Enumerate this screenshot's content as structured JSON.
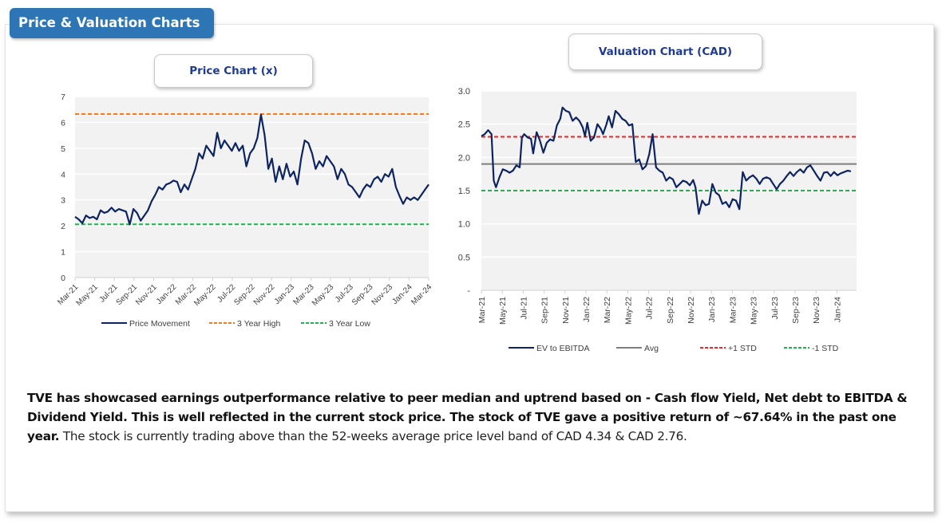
{
  "header": {
    "title": "Price & Valuation Charts"
  },
  "chart_data": [
    {
      "id": "price",
      "type": "line",
      "title": "Price Chart (x)",
      "xlabel": "",
      "ylabel": "",
      "ylim": [
        0,
        7
      ],
      "yticks": [
        "0",
        "1",
        "2",
        "3",
        "4",
        "5",
        "6",
        "7"
      ],
      "xticks": [
        "Mar-21",
        "May-21",
        "Jul-21",
        "Sep-21",
        "Nov-21",
        "Jan-22",
        "Mar-22",
        "May-22",
        "Jul-22",
        "Sep-22",
        "Nov-22",
        "Jan-23",
        "Mar-23",
        "May-23",
        "Jul-23",
        "Sep-23",
        "Nov-23",
        "Jan-24",
        "Mar-24"
      ],
      "x_months_from_start": [
        0,
        37
      ],
      "grid": true,
      "legend_position": "bottom",
      "series": [
        {
          "name": "Price Movement",
          "color": "#0d2463",
          "style": "solid",
          "points": [
            [
              0,
              2.35
            ],
            [
              0.4,
              2.25
            ],
            [
              0.8,
              2.1
            ],
            [
              1.2,
              2.4
            ],
            [
              1.6,
              2.3
            ],
            [
              2,
              2.35
            ],
            [
              2.4,
              2.25
            ],
            [
              2.8,
              2.6
            ],
            [
              3.2,
              2.5
            ],
            [
              3.6,
              2.55
            ],
            [
              4,
              2.7
            ],
            [
              4.4,
              2.55
            ],
            [
              4.8,
              2.65
            ],
            [
              5.2,
              2.6
            ],
            [
              5.6,
              2.55
            ],
            [
              6,
              2.05
            ],
            [
              6.4,
              2.65
            ],
            [
              6.8,
              2.5
            ],
            [
              7.2,
              2.2
            ],
            [
              7.6,
              2.4
            ],
            [
              8,
              2.6
            ],
            [
              8.4,
              2.95
            ],
            [
              8.8,
              3.2
            ],
            [
              9.2,
              3.5
            ],
            [
              9.6,
              3.4
            ],
            [
              10,
              3.6
            ],
            [
              10.4,
              3.65
            ],
            [
              10.8,
              3.75
            ],
            [
              11.2,
              3.7
            ],
            [
              11.6,
              3.3
            ],
            [
              12,
              3.6
            ],
            [
              12.4,
              3.4
            ],
            [
              12.8,
              3.8
            ],
            [
              13.2,
              4.2
            ],
            [
              13.6,
              4.8
            ],
            [
              14,
              4.6
            ],
            [
              14.4,
              5.1
            ],
            [
              14.8,
              4.9
            ],
            [
              15.2,
              4.7
            ],
            [
              15.6,
              5.6
            ],
            [
              16,
              5.0
            ],
            [
              16.4,
              5.3
            ],
            [
              16.8,
              5.1
            ],
            [
              17.2,
              4.9
            ],
            [
              17.6,
              5.2
            ],
            [
              18,
              4.9
            ],
            [
              18.4,
              5.1
            ],
            [
              18.8,
              4.3
            ],
            [
              19.2,
              4.8
            ],
            [
              19.6,
              5.0
            ],
            [
              20,
              5.4
            ],
            [
              20.4,
              6.3
            ],
            [
              20.8,
              5.5
            ],
            [
              21.2,
              4.2
            ],
            [
              21.6,
              4.6
            ],
            [
              22,
              3.7
            ],
            [
              22.4,
              4.3
            ],
            [
              22.8,
              3.8
            ],
            [
              23.2,
              4.4
            ],
            [
              23.6,
              3.9
            ],
            [
              24,
              4.1
            ],
            [
              24.4,
              3.6
            ],
            [
              24.8,
              4.6
            ],
            [
              25.2,
              5.3
            ],
            [
              25.6,
              5.2
            ],
            [
              26,
              4.8
            ],
            [
              26.4,
              4.2
            ],
            [
              26.8,
              4.5
            ],
            [
              27.2,
              4.3
            ],
            [
              27.6,
              4.7
            ],
            [
              28,
              4.5
            ],
            [
              28.4,
              4.3
            ],
            [
              28.8,
              3.8
            ],
            [
              29.2,
              4.2
            ],
            [
              29.6,
              4.0
            ],
            [
              30,
              3.6
            ],
            [
              30.4,
              3.5
            ],
            [
              30.8,
              3.3
            ],
            [
              31.2,
              3.1
            ],
            [
              31.6,
              3.4
            ],
            [
              32,
              3.6
            ],
            [
              32.4,
              3.5
            ],
            [
              32.8,
              3.8
            ],
            [
              33.2,
              3.9
            ],
            [
              33.6,
              3.7
            ],
            [
              34,
              4.0
            ],
            [
              34.4,
              3.9
            ],
            [
              34.8,
              4.2
            ],
            [
              35.2,
              3.5
            ],
            [
              35.6,
              3.15
            ],
            [
              36,
              2.85
            ],
            [
              36.4,
              3.1
            ],
            [
              36.8,
              3.0
            ],
            [
              37.2,
              3.1
            ],
            [
              37.6,
              3.0
            ],
            [
              38,
              3.2
            ],
            [
              38.4,
              3.4
            ],
            [
              38.8,
              3.6
            ]
          ]
        },
        {
          "name": "3 Year High",
          "color": "#f07b22",
          "style": "dashed",
          "value": 6.32
        },
        {
          "name": "3 Year Low",
          "color": "#1fb24a",
          "style": "dashed",
          "value": 2.06
        }
      ]
    },
    {
      "id": "valuation",
      "type": "line",
      "title": "Valuation Chart (CAD)",
      "xlabel": "",
      "ylabel": "",
      "ylim": [
        0,
        3.0
      ],
      "yticks": [
        "-",
        "0.5",
        "1.0",
        "1.5",
        "2.0",
        "2.5",
        "3.0"
      ],
      "xticks": [
        "Mar-21",
        "May-21",
        "Jul-21",
        "Sep-21",
        "Nov-21",
        "Jan-22",
        "Mar-22",
        "May-22",
        "Jul-22",
        "Sep-22",
        "Nov-22",
        "Jan-23",
        "Mar-23",
        "May-23",
        "Jul-23",
        "Sep-23",
        "Nov-23",
        "Jan-24"
      ],
      "grid": true,
      "legend_position": "bottom",
      "series": [
        {
          "name": "EV to EBITDA",
          "color": "#0d2463",
          "style": "solid",
          "points": [
            [
              0,
              2.32
            ],
            [
              0.3,
              2.35
            ],
            [
              0.6,
              2.41
            ],
            [
              0.9,
              2.35
            ],
            [
              1.1,
              1.65
            ],
            [
              1.3,
              1.55
            ],
            [
              1.6,
              1.7
            ],
            [
              1.9,
              1.82
            ],
            [
              2.2,
              1.8
            ],
            [
              2.5,
              1.77
            ],
            [
              2.8,
              1.8
            ],
            [
              3.1,
              1.88
            ],
            [
              3.4,
              1.85
            ],
            [
              3.6,
              2.3
            ],
            [
              3.8,
              2.35
            ],
            [
              4.1,
              2.3
            ],
            [
              4.4,
              2.28
            ],
            [
              4.6,
              2.06
            ],
            [
              4.9,
              2.38
            ],
            [
              5.2,
              2.25
            ],
            [
              5.5,
              2.07
            ],
            [
              5.8,
              2.22
            ],
            [
              6.1,
              2.27
            ],
            [
              6.4,
              2.25
            ],
            [
              6.7,
              2.48
            ],
            [
              7.0,
              2.58
            ],
            [
              7.2,
              2.75
            ],
            [
              7.5,
              2.7
            ],
            [
              7.8,
              2.68
            ],
            [
              8.1,
              2.55
            ],
            [
              8.4,
              2.6
            ],
            [
              8.7,
              2.55
            ],
            [
              9.0,
              2.45
            ],
            [
              9.2,
              2.32
            ],
            [
              9.4,
              2.52
            ],
            [
              9.7,
              2.25
            ],
            [
              10.0,
              2.3
            ],
            [
              10.3,
              2.5
            ],
            [
              10.6,
              2.43
            ],
            [
              10.8,
              2.35
            ],
            [
              11.1,
              2.5
            ],
            [
              11.3,
              2.62
            ],
            [
              11.6,
              2.45
            ],
            [
              11.9,
              2.7
            ],
            [
              12.2,
              2.65
            ],
            [
              12.5,
              2.58
            ],
            [
              12.8,
              2.55
            ],
            [
              13.1,
              2.48
            ],
            [
              13.4,
              2.5
            ],
            [
              13.7,
              1.93
            ],
            [
              14.0,
              1.97
            ],
            [
              14.3,
              1.82
            ],
            [
              14.6,
              1.87
            ],
            [
              14.9,
              2.05
            ],
            [
              15.2,
              2.35
            ],
            [
              15.5,
              1.85
            ],
            [
              15.8,
              1.8
            ],
            [
              16.1,
              1.77
            ],
            [
              16.4,
              1.65
            ],
            [
              16.7,
              1.7
            ],
            [
              17.0,
              1.67
            ],
            [
              17.3,
              1.55
            ],
            [
              17.6,
              1.6
            ],
            [
              17.9,
              1.65
            ],
            [
              18.2,
              1.63
            ],
            [
              18.5,
              1.58
            ],
            [
              18.8,
              1.66
            ],
            [
              19.0,
              1.55
            ],
            [
              19.3,
              1.15
            ],
            [
              19.6,
              1.35
            ],
            [
              19.9,
              1.28
            ],
            [
              20.2,
              1.3
            ],
            [
              20.5,
              1.6
            ],
            [
              20.8,
              1.47
            ],
            [
              21.1,
              1.43
            ],
            [
              21.4,
              1.3
            ],
            [
              21.7,
              1.33
            ],
            [
              22.0,
              1.25
            ],
            [
              22.3,
              1.37
            ],
            [
              22.6,
              1.35
            ],
            [
              22.9,
              1.22
            ],
            [
              23.2,
              1.78
            ],
            [
              23.5,
              1.65
            ],
            [
              23.8,
              1.7
            ],
            [
              24.1,
              1.73
            ],
            [
              24.4,
              1.68
            ],
            [
              24.7,
              1.6
            ],
            [
              25.0,
              1.68
            ],
            [
              25.3,
              1.7
            ],
            [
              25.6,
              1.68
            ],
            [
              25.9,
              1.6
            ],
            [
              26.2,
              1.52
            ],
            [
              26.5,
              1.6
            ],
            [
              26.8,
              1.65
            ],
            [
              27.1,
              1.72
            ],
            [
              27.4,
              1.78
            ],
            [
              27.7,
              1.72
            ],
            [
              28.0,
              1.78
            ],
            [
              28.3,
              1.82
            ],
            [
              28.6,
              1.77
            ],
            [
              28.9,
              1.85
            ],
            [
              29.2,
              1.88
            ],
            [
              29.5,
              1.8
            ],
            [
              29.8,
              1.72
            ],
            [
              30.1,
              1.65
            ],
            [
              30.4,
              1.77
            ],
            [
              30.7,
              1.78
            ],
            [
              31.0,
              1.72
            ],
            [
              31.3,
              1.78
            ],
            [
              31.6,
              1.73
            ],
            [
              31.9,
              1.76
            ],
            [
              32.2,
              1.78
            ],
            [
              32.5,
              1.8
            ],
            [
              32.8,
              1.79
            ]
          ]
        },
        {
          "name": "Avg",
          "color": "#7f7f7f",
          "style": "solid",
          "value": 1.9
        },
        {
          "name": "+1 STD",
          "color": "#ff1f1f",
          "style": "dashed",
          "value": 2.31
        },
        {
          "name": "-1 STD",
          "color": "#1fb24a",
          "style": "dashed",
          "value": 1.5
        }
      ]
    }
  ],
  "summary": {
    "bold_text": "TVE has showcased earnings outperformance relative to peer median and uptrend based on - Cash flow Yield, Net debt to EBITDA & Dividend Yield. This is well reflected in the current stock price. The stock of TVE gave a positive return of ~67.64% in the past one year.",
    "normal_text": " The stock is currently trading  above than the 52-weeks average price level band of CAD 4.34 & CAD 2.76."
  }
}
